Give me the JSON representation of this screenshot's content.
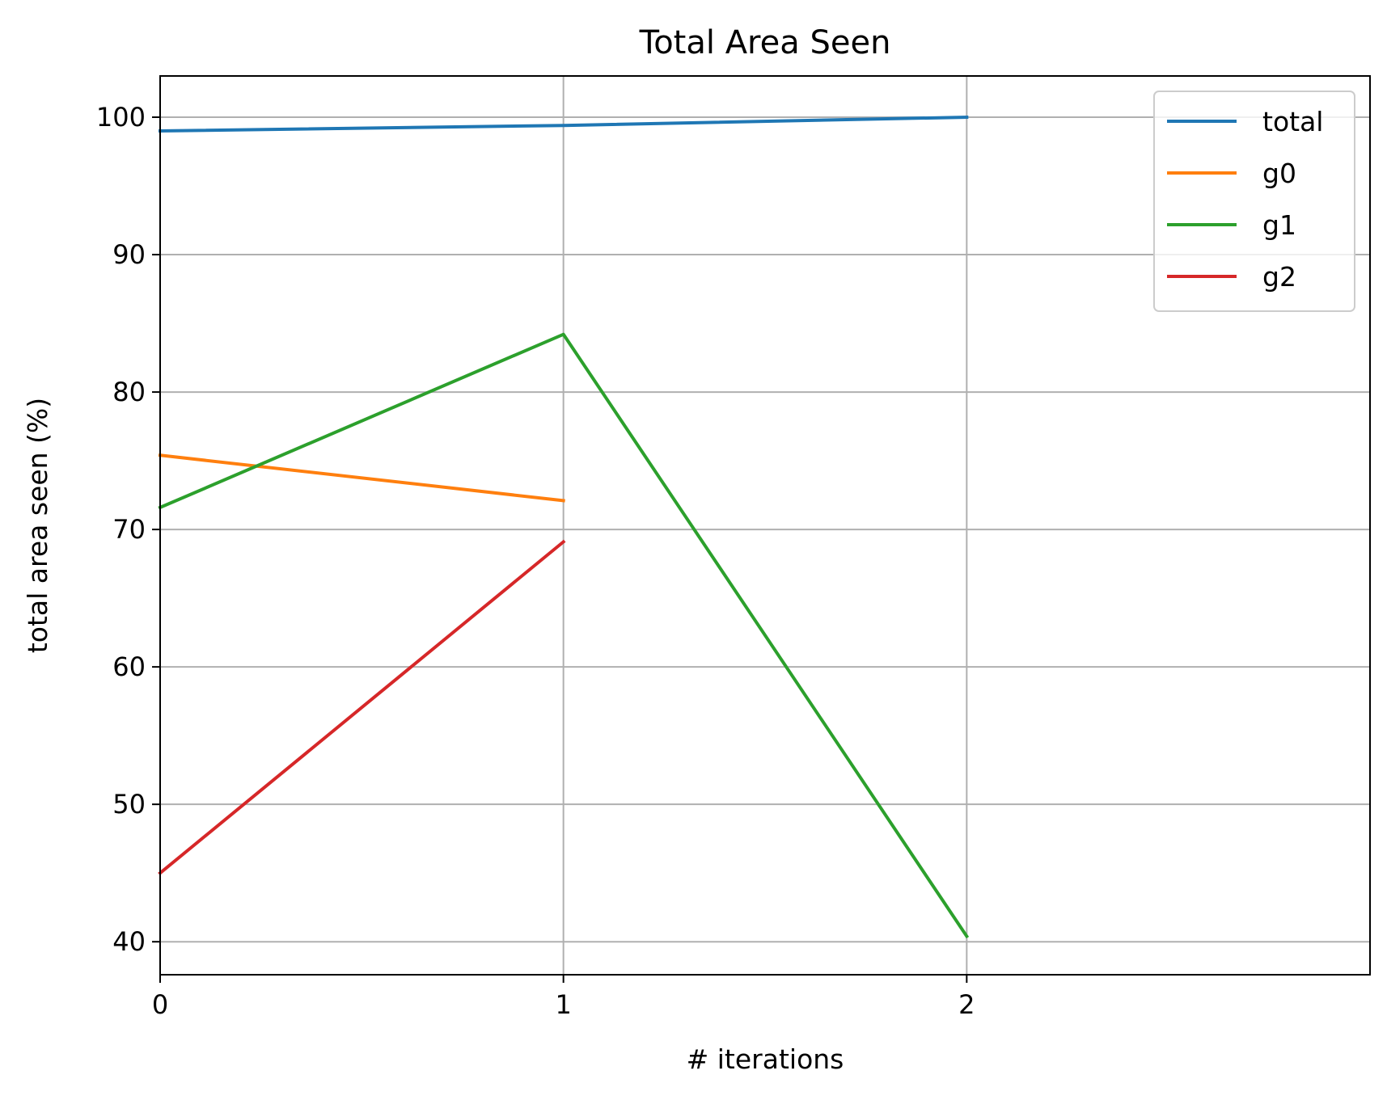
{
  "chart_data": {
    "type": "line",
    "title": "Total Area Seen",
    "xlabel": "# iterations",
    "ylabel": "total area seen (%)",
    "xlim": [
      0,
      3
    ],
    "ylim": [
      37.6,
      103
    ],
    "xticks": [
      0,
      1,
      2
    ],
    "yticks": [
      40,
      50,
      60,
      70,
      80,
      90,
      100
    ],
    "grid": true,
    "legend_position": "top-right",
    "series": [
      {
        "name": "total",
        "color": "#1f77b4",
        "x": [
          0,
          1,
          2
        ],
        "y": [
          99.0,
          99.4,
          100.0
        ]
      },
      {
        "name": "g0",
        "color": "#ff7f0e",
        "x": [
          0,
          1
        ],
        "y": [
          75.4,
          72.1
        ]
      },
      {
        "name": "g1",
        "color": "#2ca02c",
        "x": [
          0,
          1,
          2
        ],
        "y": [
          71.6,
          84.2,
          40.4
        ]
      },
      {
        "name": "g2",
        "color": "#d62728",
        "x": [
          0,
          1
        ],
        "y": [
          45.0,
          69.1
        ]
      }
    ]
  }
}
